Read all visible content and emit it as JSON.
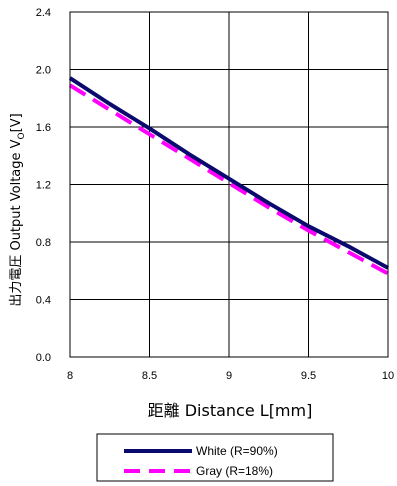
{
  "chart_data": {
    "type": "line",
    "xlabel": "距離 Distance L[mm]",
    "ylabel_prefix": "出力電圧 Output Voltage V",
    "ylabel_sub": "O",
    "ylabel_suffix": "[V]",
    "xlim": [
      8,
      10
    ],
    "ylim": [
      0,
      2.4
    ],
    "x_ticks": [
      "8",
      "8.5",
      "9",
      "9.5",
      "10"
    ],
    "y_ticks": [
      "0.0",
      "0.4",
      "0.8",
      "1.2",
      "1.6",
      "2.0",
      "2.4"
    ],
    "x_tick_values": [
      8,
      8.5,
      9,
      9.5,
      10
    ],
    "y_tick_values": [
      0,
      0.4,
      0.8,
      1.2,
      1.6,
      2.0,
      2.4
    ],
    "grid": true,
    "legend_position": "bottom",
    "series": [
      {
        "name": "White (R=90%)",
        "color": "#0a0a6e",
        "style": "solid",
        "x": [
          8,
          8.25,
          8.5,
          8.75,
          9,
          9.25,
          9.5,
          9.75,
          10
        ],
        "values": [
          1.94,
          1.76,
          1.59,
          1.41,
          1.24,
          1.07,
          0.91,
          0.77,
          0.62
        ]
      },
      {
        "name": "Gray (R=18%)",
        "color": "#ff00ff",
        "style": "dashed",
        "x": [
          8,
          8.25,
          8.5,
          8.75,
          9,
          9.25,
          9.5,
          9.75,
          10
        ],
        "values": [
          1.89,
          1.72,
          1.55,
          1.38,
          1.21,
          1.04,
          0.88,
          0.73,
          0.58
        ]
      }
    ]
  }
}
